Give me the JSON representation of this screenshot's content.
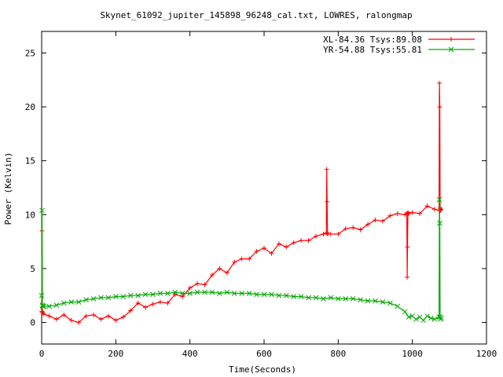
{
  "chart_data": {
    "type": "line",
    "title": "Skynet_61092_jupiter_145898_96248_cal.txt, LOWRES, ralongmap",
    "xlabel": "Time(Seconds)",
    "ylabel": "Power (Kelvin)",
    "xlim": [
      0,
      1200
    ],
    "ylim": [
      -2,
      27
    ],
    "xticks": [
      0,
      200,
      400,
      600,
      800,
      1000,
      1200
    ],
    "yticks": [
      0,
      5,
      10,
      15,
      20,
      25
    ],
    "grid": false,
    "legend": "top-right",
    "series": [
      {
        "name": "XL-84.36 Tsys:89.08",
        "color": "#ff0000",
        "marker": "plus",
        "x": [
          0,
          1,
          2,
          3,
          5,
          20,
          40,
          60,
          80,
          100,
          120,
          140,
          160,
          180,
          200,
          220,
          240,
          260,
          280,
          300,
          320,
          340,
          360,
          380,
          400,
          420,
          440,
          460,
          480,
          500,
          520,
          540,
          560,
          580,
          600,
          620,
          640,
          660,
          680,
          700,
          720,
          740,
          760,
          768,
          769,
          770,
          771,
          772,
          780,
          800,
          820,
          840,
          860,
          880,
          900,
          920,
          940,
          960,
          980,
          985,
          986,
          987,
          988,
          990,
          1000,
          1020,
          1040,
          1060,
          1072,
          1073,
          1074,
          1075,
          1076,
          1078
        ],
        "y": [
          1.0,
          8.5,
          1.0,
          0.9,
          0.8,
          0.6,
          0.3,
          0.7,
          0.2,
          0.0,
          0.6,
          0.7,
          0.3,
          0.6,
          0.2,
          0.5,
          1.1,
          1.8,
          1.4,
          1.7,
          1.9,
          1.8,
          2.6,
          2.4,
          3.2,
          3.6,
          3.5,
          4.4,
          5.0,
          4.6,
          5.6,
          5.9,
          5.9,
          6.6,
          6.9,
          6.4,
          7.3,
          7.0,
          7.4,
          7.6,
          7.6,
          8.0,
          8.2,
          8.3,
          14.2,
          11.2,
          8.3,
          8.2,
          8.2,
          8.2,
          8.7,
          8.8,
          8.6,
          9.1,
          9.5,
          9.4,
          9.9,
          10.1,
          10.0,
          10.1,
          4.2,
          7.0,
          10.2,
          10.1,
          10.2,
          10.1,
          10.8,
          10.5,
          10.4,
          22.2,
          20.0,
          10.6,
          10.4,
          10.5
        ]
      },
      {
        "name": "YR-54.88 Tsys:55.81",
        "color": "#00aa00",
        "marker": "cross",
        "x": [
          0,
          1,
          2,
          3,
          5,
          20,
          40,
          60,
          80,
          100,
          120,
          140,
          160,
          180,
          200,
          220,
          240,
          260,
          280,
          300,
          320,
          340,
          360,
          380,
          400,
          420,
          440,
          460,
          480,
          500,
          520,
          540,
          560,
          580,
          600,
          620,
          640,
          660,
          680,
          700,
          720,
          740,
          760,
          780,
          800,
          820,
          840,
          860,
          880,
          900,
          920,
          940,
          960,
          980,
          990,
          1000,
          1010,
          1020,
          1030,
          1040,
          1050,
          1060,
          1072,
          1073,
          1074,
          1075,
          1076,
          1078
        ],
        "y": [
          2.5,
          10.4,
          1.6,
          1.5,
          1.5,
          1.5,
          1.6,
          1.8,
          1.9,
          1.9,
          2.1,
          2.2,
          2.3,
          2.3,
          2.4,
          2.4,
          2.5,
          2.5,
          2.6,
          2.6,
          2.7,
          2.7,
          2.8,
          2.7,
          2.7,
          2.8,
          2.8,
          2.8,
          2.7,
          2.8,
          2.7,
          2.7,
          2.7,
          2.6,
          2.6,
          2.6,
          2.5,
          2.5,
          2.4,
          2.4,
          2.3,
          2.3,
          2.2,
          2.3,
          2.2,
          2.2,
          2.2,
          2.1,
          2.0,
          2.0,
          1.9,
          1.8,
          1.5,
          1.0,
          0.5,
          0.6,
          0.3,
          0.5,
          0.2,
          0.6,
          0.4,
          0.3,
          0.5,
          11.4,
          9.2,
          0.5,
          0.3,
          0.4
        ]
      }
    ]
  }
}
